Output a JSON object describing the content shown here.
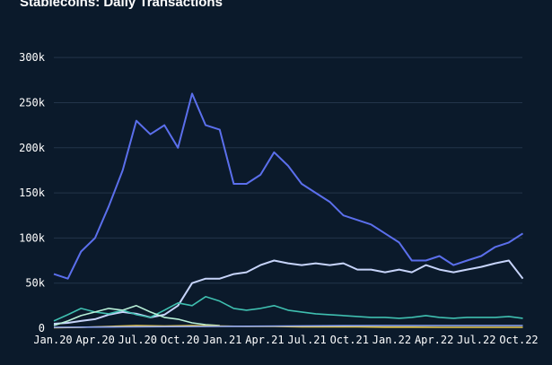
{
  "chart_data": {
    "type": "line",
    "title": "Stablecoins: Daily Transactions",
    "xlabel": "",
    "ylabel": "",
    "ylim": [
      0,
      300000
    ],
    "grid": true,
    "legend": "none",
    "x_tick_labels": [
      "Jan.20",
      "Apr.20",
      "Jul.20",
      "Oct.20",
      "Jan.21",
      "Apr.21",
      "Jul.21",
      "Oct.21",
      "Jan.22",
      "Apr.22",
      "Jul.22",
      "Oct.22"
    ],
    "y_tick_values": [
      0,
      50000,
      100000,
      150000,
      200000,
      250000,
      300000
    ],
    "y_tick_labels": [
      "0",
      "50k",
      "100k",
      "150k",
      "200k",
      "250k",
      "300k"
    ],
    "series": [
      {
        "color": "#5b6fec",
        "x": [
          "2020-01-01",
          "2020-02-01",
          "2020-03-01",
          "2020-04-01",
          "2020-05-01",
          "2020-06-01",
          "2020-07-01",
          "2020-08-01",
          "2020-09-01",
          "2020-10-01",
          "2020-11-01",
          "2020-12-01",
          "2021-01-01",
          "2021-02-01",
          "2021-03-01",
          "2021-04-01",
          "2021-05-01",
          "2021-06-01",
          "2021-07-01",
          "2021-08-01",
          "2021-09-01",
          "2021-10-01",
          "2021-11-01",
          "2021-12-01",
          "2022-01-01",
          "2022-02-01",
          "2022-03-01",
          "2022-04-01",
          "2022-05-01",
          "2022-06-01",
          "2022-07-01",
          "2022-08-01",
          "2022-09-01",
          "2022-10-01",
          "2022-11-01"
        ],
        "values": [
          60000,
          55000,
          85000,
          100000,
          135000,
          175000,
          230000,
          215000,
          225000,
          200000,
          260000,
          225000,
          220000,
          160000,
          160000,
          170000,
          195000,
          180000,
          160000,
          150000,
          140000,
          125000,
          120000,
          115000,
          105000,
          95000,
          75000,
          75000,
          80000,
          70000,
          75000,
          80000,
          90000,
          95000,
          105000
        ]
      },
      {
        "color": "#c7d4fa",
        "x": [
          "2020-01-01",
          "2020-02-01",
          "2020-03-01",
          "2020-04-01",
          "2020-05-01",
          "2020-06-01",
          "2020-07-01",
          "2020-08-01",
          "2020-09-01",
          "2020-10-01",
          "2020-11-01",
          "2020-12-01",
          "2021-01-01",
          "2021-02-01",
          "2021-03-01",
          "2021-04-01",
          "2021-05-01",
          "2021-06-01",
          "2021-07-01",
          "2021-08-01",
          "2021-09-01",
          "2021-10-01",
          "2021-11-01",
          "2021-12-01",
          "2022-01-01",
          "2022-02-01",
          "2022-03-01",
          "2022-04-01",
          "2022-05-01",
          "2022-06-01",
          "2022-07-01",
          "2022-08-01",
          "2022-09-01",
          "2022-10-01",
          "2022-11-01"
        ],
        "values": [
          5000,
          6000,
          8000,
          10000,
          15000,
          18000,
          16000,
          12000,
          15000,
          25000,
          50000,
          55000,
          55000,
          60000,
          62000,
          70000,
          75000,
          72000,
          70000,
          72000,
          70000,
          72000,
          65000,
          65000,
          62000,
          65000,
          62000,
          70000,
          65000,
          62000,
          65000,
          68000,
          72000,
          75000,
          55000
        ]
      },
      {
        "color": "#3fbfb0",
        "x": [
          "2020-01-01",
          "2020-02-01",
          "2020-03-01",
          "2020-04-01",
          "2020-05-01",
          "2020-06-01",
          "2020-07-01",
          "2020-08-01",
          "2020-09-01",
          "2020-10-01",
          "2020-11-01",
          "2020-12-01",
          "2021-01-01",
          "2021-02-01",
          "2021-03-01",
          "2021-04-01",
          "2021-05-01",
          "2021-06-01",
          "2021-07-01",
          "2021-08-01",
          "2021-09-01",
          "2021-10-01",
          "2021-11-01",
          "2021-12-01",
          "2022-01-01",
          "2022-02-01",
          "2022-03-01",
          "2022-04-01",
          "2022-05-01",
          "2022-06-01",
          "2022-07-01",
          "2022-08-01",
          "2022-09-01",
          "2022-10-01",
          "2022-11-01"
        ],
        "values": [
          8000,
          15000,
          22000,
          18000,
          16000,
          20000,
          15000,
          12000,
          20000,
          28000,
          25000,
          35000,
          30000,
          22000,
          20000,
          22000,
          25000,
          20000,
          18000,
          16000,
          15000,
          14000,
          13000,
          12000,
          12000,
          11000,
          12000,
          14000,
          12000,
          11000,
          12000,
          12000,
          12000,
          13000,
          11000
        ]
      },
      {
        "color": "#b8f0d8",
        "x": [
          "2020-01-01",
          "2020-02-01",
          "2020-03-01",
          "2020-04-01",
          "2020-05-01",
          "2020-06-01",
          "2020-07-01",
          "2020-08-01",
          "2020-09-01",
          "2020-10-01",
          "2020-11-01",
          "2020-12-01",
          "2021-01-01"
        ],
        "values": [
          3000,
          8000,
          14000,
          18000,
          22000,
          20000,
          25000,
          18000,
          12000,
          10000,
          6000,
          4000,
          3000
        ]
      },
      {
        "color": "#e8c84a",
        "x": [
          "2020-01-01",
          "2020-03-01",
          "2020-05-01",
          "2020-07-01",
          "2020-09-01",
          "2020-11-01",
          "2021-01-01",
          "2021-03-01",
          "2021-05-01",
          "2021-07-01",
          "2021-09-01",
          "2021-11-01",
          "2022-01-01",
          "2022-03-01",
          "2022-05-01",
          "2022-07-01",
          "2022-09-01",
          "2022-11-01"
        ],
        "values": [
          500,
          1000,
          2000,
          3000,
          2500,
          3000,
          2500,
          2000,
          2000,
          1500,
          1500,
          1500,
          1200,
          1200,
          1000,
          1000,
          1000,
          1000
        ]
      },
      {
        "color": "#8fa6f0",
        "x": [
          "2020-01-01",
          "2020-06-01",
          "2021-01-01",
          "2021-06-01",
          "2022-01-01",
          "2022-06-01",
          "2022-11-01"
        ],
        "values": [
          1000,
          1500,
          2000,
          2500,
          3000,
          3000,
          3000
        ]
      }
    ]
  }
}
